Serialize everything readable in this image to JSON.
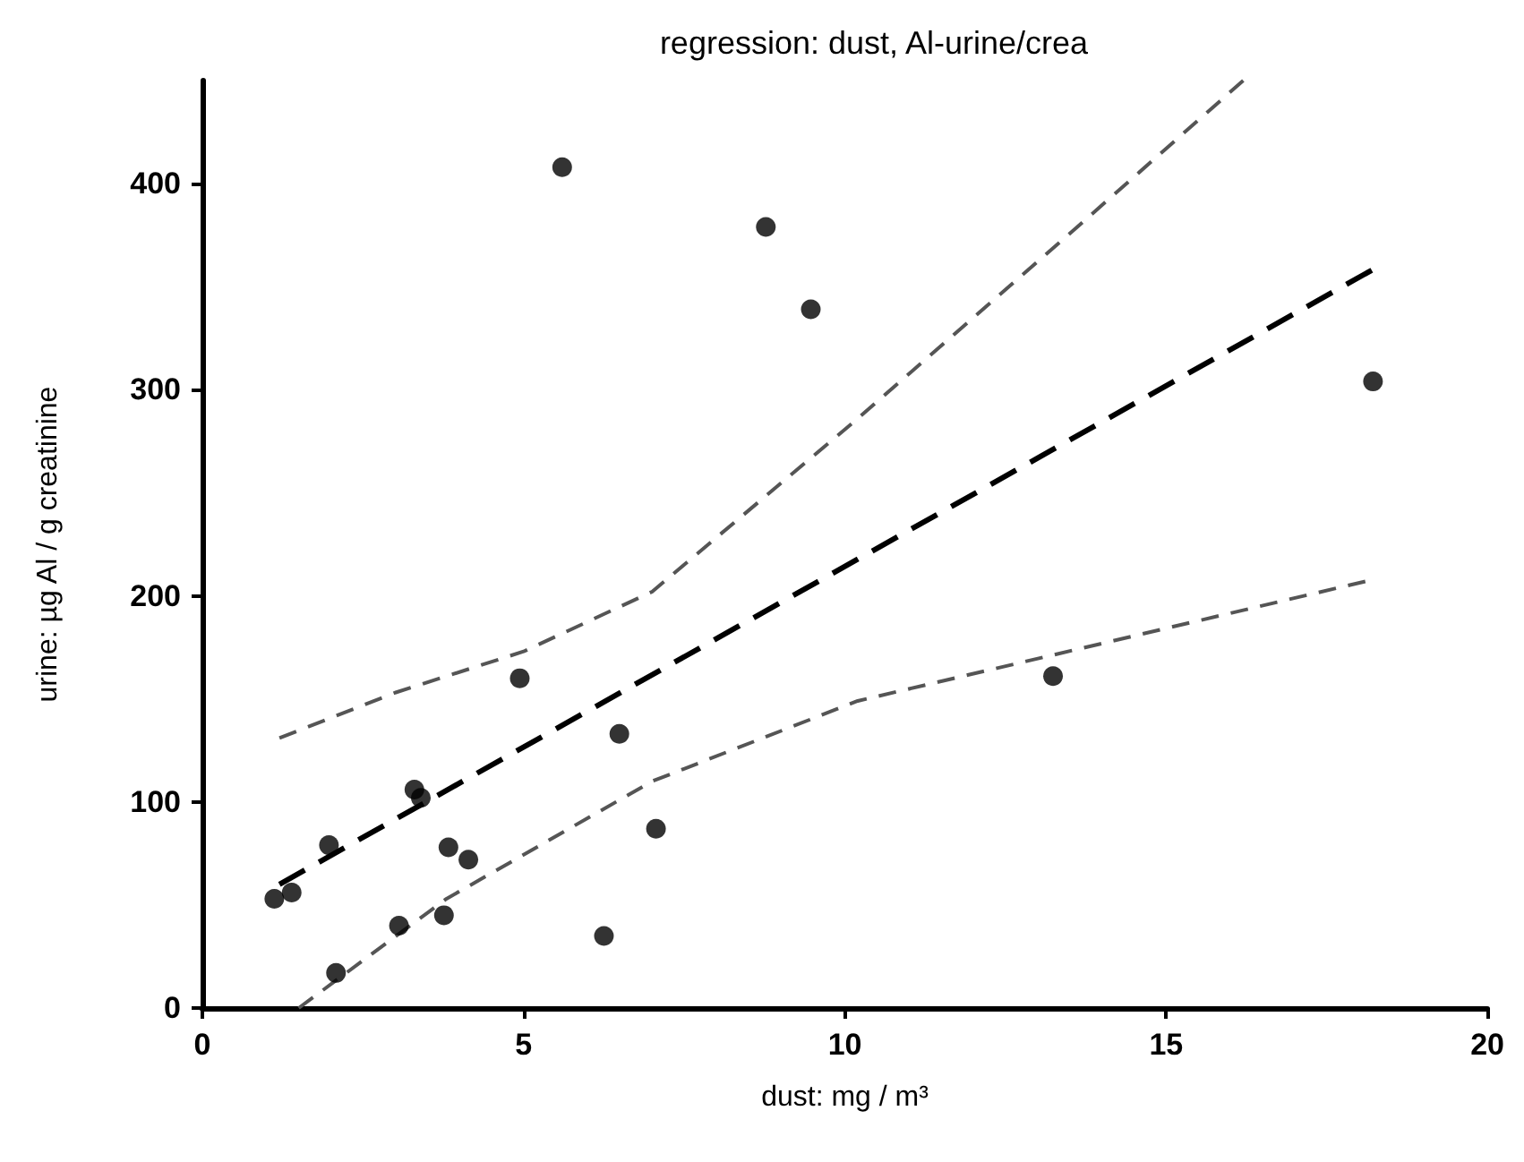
{
  "chart_data": {
    "type": "scatter",
    "title": "regression: dust, Al-urine/crea",
    "xlabel": "dust: mg / m³",
    "ylabel": "urine: µg Al / g creatinine",
    "xlim": [
      0,
      20
    ],
    "xticks": [
      0,
      5,
      10,
      15,
      20
    ],
    "ylim": [
      0,
      450
    ],
    "yticks": [
      0,
      100,
      200,
      300,
      400
    ],
    "grid": false,
    "series": [
      {
        "color": "#000000",
        "marker": "circle",
        "x": [
          1.12,
          1.39,
          1.97,
          2.08,
          3.06,
          3.3,
          3.4,
          3.76,
          3.83,
          4.14,
          4.94,
          5.6,
          6.25,
          6.49,
          7.06,
          8.77,
          9.47,
          13.24,
          18.22
        ],
        "values": [
          53,
          56,
          79,
          17,
          40,
          106,
          102,
          45,
          78,
          72,
          160,
          408,
          35,
          133,
          87,
          379,
          339,
          161,
          304
        ]
      },
      {
        "type": "line",
        "color": "#000000",
        "marker": "none",
        "line_style": "dashed",
        "x": [
          1.2,
          18.2
        ],
        "values": [
          60,
          358
        ]
      },
      {
        "type": "line",
        "color": "#555555",
        "marker": "none",
        "line_style": "dashed",
        "x": [
          1.2,
          3,
          5,
          7,
          9.4,
          10.2,
          13.4,
          16.2
        ],
        "values": [
          131,
          153,
          173,
          202,
          265,
          286,
          373,
          450
        ]
      },
      {
        "type": "line",
        "color": "#555555",
        "marker": "none",
        "line_style": "dashed",
        "x": [
          1.5,
          3.8,
          7,
          10.2,
          13.2,
          18.1
        ],
        "values": [
          0,
          53,
          110,
          149,
          171,
          207
        ]
      }
    ]
  }
}
